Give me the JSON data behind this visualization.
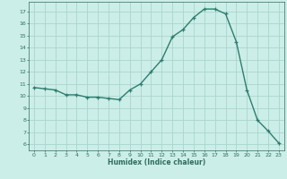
{
  "x": [
    0,
    1,
    2,
    3,
    4,
    5,
    6,
    7,
    8,
    9,
    10,
    11,
    12,
    13,
    14,
    15,
    16,
    17,
    18,
    19,
    20,
    21,
    22,
    23
  ],
  "y": [
    10.7,
    10.6,
    10.5,
    10.1,
    10.1,
    9.9,
    9.9,
    9.8,
    9.7,
    10.5,
    11.0,
    12.0,
    13.0,
    14.9,
    15.5,
    16.5,
    17.2,
    17.2,
    16.8,
    14.5,
    10.5,
    8.0,
    7.1,
    6.1
  ],
  "xlabel": "Humidex (Indice chaleur)",
  "line_color": "#2e7d6e",
  "marker": "+",
  "bg_color": "#cceee8",
  "grid_color": "#aad4ce",
  "tick_label_color": "#2e6e5e",
  "ylim": [
    5.5,
    17.8
  ],
  "xlim": [
    -0.5,
    23.5
  ],
  "yticks": [
    6,
    7,
    8,
    9,
    10,
    11,
    12,
    13,
    14,
    15,
    16,
    17
  ],
  "xticks": [
    0,
    1,
    2,
    3,
    4,
    5,
    6,
    7,
    8,
    9,
    10,
    11,
    12,
    13,
    14,
    15,
    16,
    17,
    18,
    19,
    20,
    21,
    22,
    23
  ]
}
